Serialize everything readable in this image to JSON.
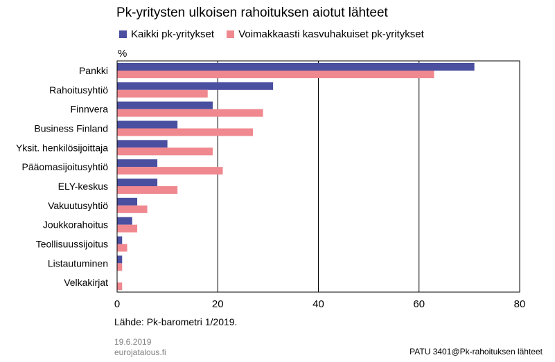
{
  "chart_data": {
    "type": "bar",
    "orientation": "horizontal",
    "title": "Pk-yritysten ulkoisen rahoituksen aiotut lähteet",
    "unit": "%",
    "categories": [
      "Pankki",
      "Rahoitusyhtiö",
      "Finnvera",
      "Business Finland",
      "Yksit. henkilösijoittaja",
      "Pääomasijoitusyhtiö",
      "ELY-keskus",
      "Vakuutusyhtiö",
      "Joukkorahoitus",
      "Teollisuussijoitus",
      "Listautuminen",
      "Velkakirjat"
    ],
    "series": [
      {
        "name": "Kaikki pk-yritykset",
        "color": "#4a4fa0",
        "values": [
          71,
          31,
          19,
          12,
          10,
          8,
          8,
          4,
          3,
          1,
          1,
          0
        ]
      },
      {
        "name": "Voimakkaasti kasvuhakuiset pk-yritykset",
        "color": "#f0888f",
        "values": [
          63,
          18,
          29,
          27,
          19,
          21,
          12,
          6,
          4,
          2,
          1,
          1
        ]
      }
    ],
    "xlim": [
      0,
      80
    ],
    "xticks": [
      0,
      20,
      40,
      60,
      80
    ],
    "grid": "vertical",
    "legend_position": "top"
  },
  "footer": {
    "source": "Lähde: Pk-barometri 1/2019.",
    "date": "19.6.2019",
    "site": "eurojatalous.fi",
    "chart_id": "PATU 3401@Pk-rahoituksen lähteet"
  }
}
